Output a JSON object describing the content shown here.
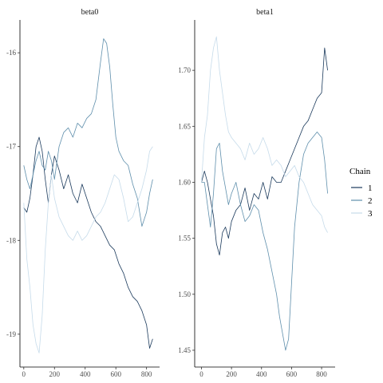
{
  "legend": {
    "title": "Chain",
    "entries": [
      {
        "label": "1",
        "color": "#1b3a5c"
      },
      {
        "label": "2",
        "color": "#5f8fac"
      },
      {
        "label": "3",
        "color": "#c6dbea"
      }
    ]
  },
  "chart_data": [
    {
      "type": "line",
      "title": "beta0",
      "xlabel": "",
      "ylabel": "",
      "xlim": [
        -25,
        885
      ],
      "ylim": [
        -19.35,
        -15.65
      ],
      "xticks": [
        0,
        200,
        400,
        600,
        800
      ],
      "xtick_labels": [
        "0",
        "200",
        "400",
        "600",
        "800"
      ],
      "yticks": [
        -16,
        -17,
        -18,
        -19
      ],
      "ytick_labels": [
        "-16",
        "-17",
        "-18",
        "-19"
      ],
      "grid": false,
      "series": [
        {
          "name": "1",
          "color": "#1b3a5c",
          "x": [
            0,
            20,
            40,
            60,
            80,
            100,
            120,
            140,
            160,
            180,
            200,
            230,
            260,
            290,
            320,
            350,
            380,
            410,
            440,
            470,
            500,
            530,
            560,
            590,
            620,
            650,
            680,
            710,
            740,
            770,
            800,
            820,
            840
          ],
          "y": [
            -17.65,
            -17.7,
            -17.55,
            -17.3,
            -17.0,
            -16.9,
            -17.05,
            -17.35,
            -17.6,
            -17.3,
            -17.1,
            -17.25,
            -17.45,
            -17.3,
            -17.5,
            -17.6,
            -17.4,
            -17.55,
            -17.7,
            -17.8,
            -17.85,
            -17.95,
            -18.05,
            -18.1,
            -18.25,
            -18.35,
            -18.5,
            -18.6,
            -18.65,
            -18.75,
            -18.9,
            -19.15,
            -19.05
          ]
        },
        {
          "name": "2",
          "color": "#5f8fac",
          "x": [
            0,
            20,
            40,
            60,
            80,
            100,
            120,
            140,
            160,
            180,
            200,
            230,
            260,
            290,
            320,
            350,
            380,
            410,
            440,
            470,
            500,
            520,
            540,
            560,
            580,
            600,
            620,
            650,
            680,
            710,
            740,
            770,
            800,
            820,
            840
          ],
          "y": [
            -17.2,
            -17.35,
            -17.45,
            -17.3,
            -17.15,
            -17.05,
            -17.2,
            -17.25,
            -17.05,
            -17.15,
            -17.35,
            -17.0,
            -16.85,
            -16.8,
            -16.9,
            -16.75,
            -16.8,
            -16.7,
            -16.65,
            -16.5,
            -16.1,
            -15.85,
            -15.9,
            -16.15,
            -16.55,
            -16.9,
            -17.05,
            -17.15,
            -17.2,
            -17.4,
            -17.55,
            -17.85,
            -17.7,
            -17.5,
            -17.35
          ]
        },
        {
          "name": "3",
          "color": "#c6dbea",
          "x": [
            0,
            20,
            40,
            60,
            80,
            100,
            120,
            140,
            160,
            180,
            200,
            230,
            260,
            290,
            320,
            350,
            380,
            410,
            440,
            470,
            500,
            530,
            560,
            590,
            620,
            650,
            680,
            710,
            740,
            770,
            800,
            820,
            840
          ],
          "y": [
            -17.6,
            -18.2,
            -18.5,
            -18.9,
            -19.1,
            -19.2,
            -18.8,
            -18.1,
            -17.6,
            -17.3,
            -17.55,
            -17.75,
            -17.85,
            -17.95,
            -18.0,
            -17.9,
            -18.0,
            -17.95,
            -17.85,
            -17.75,
            -17.7,
            -17.6,
            -17.45,
            -17.3,
            -17.35,
            -17.55,
            -17.8,
            -17.75,
            -17.6,
            -17.45,
            -17.25,
            -17.05,
            -17.0
          ]
        }
      ]
    },
    {
      "type": "line",
      "title": "beta1",
      "xlabel": "",
      "ylabel": "",
      "xlim": [
        -45,
        890
      ],
      "ylim": [
        1.435,
        1.745
      ],
      "xticks": [
        0,
        200,
        400,
        600,
        800
      ],
      "xtick_labels": [
        "0",
        "200",
        "400",
        "600",
        "800"
      ],
      "yticks": [
        1.45,
        1.5,
        1.55,
        1.6,
        1.65,
        1.7
      ],
      "ytick_labels": [
        "1.45",
        "1.50",
        "1.55",
        "1.60",
        "1.65",
        "1.70"
      ],
      "grid": false,
      "series": [
        {
          "name": "1",
          "color": "#1b3a5c",
          "x": [
            0,
            20,
            40,
            60,
            80,
            100,
            120,
            140,
            160,
            180,
            200,
            230,
            260,
            290,
            320,
            350,
            380,
            410,
            440,
            470,
            500,
            530,
            560,
            590,
            620,
            650,
            680,
            710,
            740,
            770,
            800,
            820,
            840
          ],
          "y": [
            1.6,
            1.61,
            1.6,
            1.585,
            1.57,
            1.545,
            1.535,
            1.555,
            1.56,
            1.55,
            1.565,
            1.575,
            1.58,
            1.595,
            1.575,
            1.59,
            1.585,
            1.6,
            1.585,
            1.605,
            1.6,
            1.6,
            1.61,
            1.62,
            1.63,
            1.64,
            1.65,
            1.655,
            1.665,
            1.675,
            1.68,
            1.72,
            1.7
          ]
        },
        {
          "name": "2",
          "color": "#5f8fac",
          "x": [
            0,
            20,
            40,
            60,
            80,
            100,
            120,
            140,
            160,
            180,
            200,
            230,
            260,
            290,
            320,
            350,
            380,
            410,
            440,
            470,
            500,
            520,
            540,
            560,
            580,
            600,
            620,
            650,
            680,
            710,
            740,
            770,
            800,
            820,
            840
          ],
          "y": [
            1.6,
            1.6,
            1.58,
            1.56,
            1.59,
            1.63,
            1.635,
            1.61,
            1.595,
            1.58,
            1.59,
            1.6,
            1.58,
            1.565,
            1.57,
            1.58,
            1.575,
            1.555,
            1.54,
            1.52,
            1.5,
            1.48,
            1.465,
            1.45,
            1.46,
            1.51,
            1.56,
            1.6,
            1.625,
            1.635,
            1.64,
            1.645,
            1.64,
            1.62,
            1.59
          ]
        },
        {
          "name": "3",
          "color": "#c6dbea",
          "x": [
            0,
            20,
            40,
            60,
            80,
            100,
            120,
            140,
            160,
            180,
            200,
            230,
            260,
            290,
            320,
            350,
            380,
            410,
            440,
            470,
            500,
            530,
            560,
            590,
            620,
            650,
            680,
            710,
            740,
            770,
            800,
            820,
            840
          ],
          "y": [
            1.6,
            1.64,
            1.66,
            1.7,
            1.72,
            1.73,
            1.7,
            1.68,
            1.66,
            1.645,
            1.64,
            1.635,
            1.63,
            1.62,
            1.635,
            1.625,
            1.63,
            1.64,
            1.63,
            1.615,
            1.62,
            1.615,
            1.605,
            1.61,
            1.615,
            1.605,
            1.6,
            1.59,
            1.58,
            1.575,
            1.57,
            1.56,
            1.555
          ]
        }
      ]
    }
  ]
}
